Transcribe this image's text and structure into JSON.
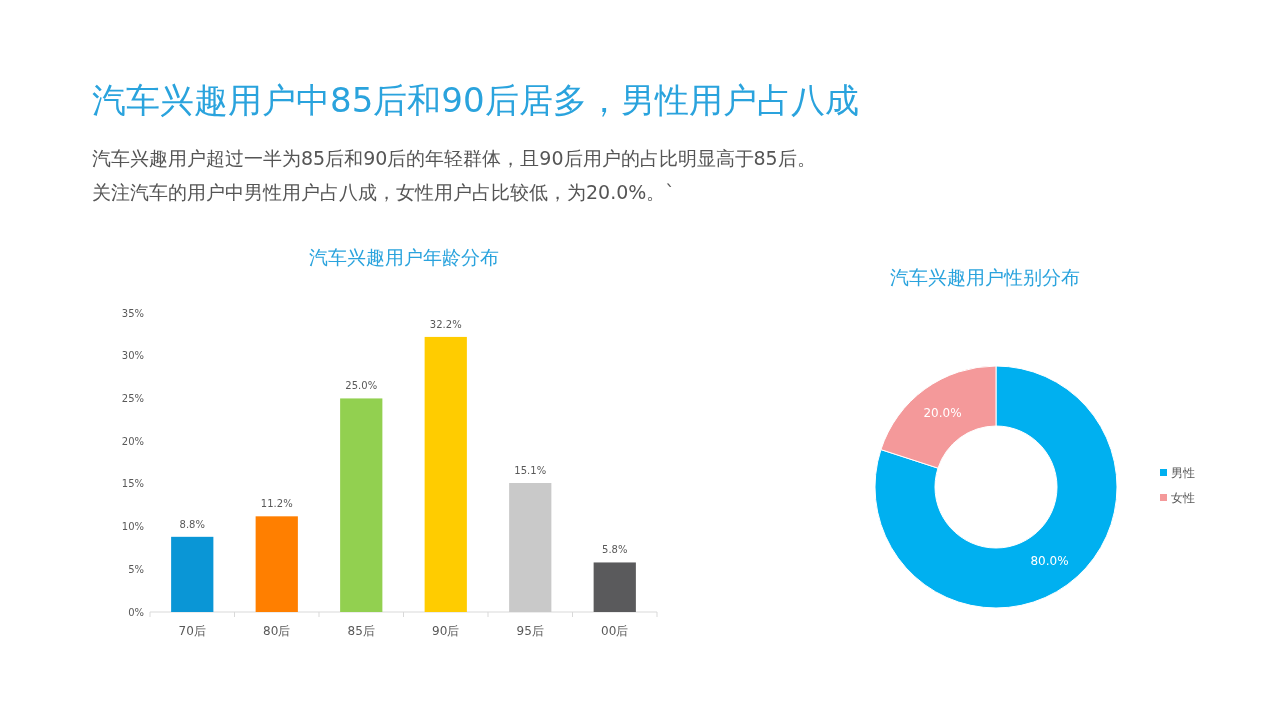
{
  "chart_data": [
    {
      "type": "other",
      "title": "汽车兴趣用户中85后和90后居多，男性用户占八成",
      "annotations": [
        "汽车兴趣用户超过一半为85后和90后的年轻群体，且90后用户的占比明显高于85后。",
        "关注汽车的用户中男性用户占八成，女性用户占比较低，为20.0%。`"
      ]
    },
    {
      "type": "bar",
      "title": "汽车兴趣用户年龄分布",
      "categories": [
        "70后",
        "80后",
        "85后",
        "90后",
        "95后",
        "00后"
      ],
      "values": [
        8.8,
        11.2,
        25.0,
        32.2,
        15.1,
        5.8
      ],
      "colors": [
        "#0a96d6",
        "#ff7f00",
        "#92d050",
        "#ffcc00",
        "#c9c9c9",
        "#5a5a5c"
      ],
      "value_labels": [
        "8.8%",
        "11.2%",
        "25.0%",
        "32.2%",
        "15.1%",
        "5.8%"
      ],
      "ylim": [
        0,
        35
      ],
      "yticks": [
        {
          "value": 0,
          "label": "0%"
        },
        {
          "value": 5,
          "label": "5%"
        },
        {
          "value": 10,
          "label": "10%"
        },
        {
          "value": 15,
          "label": "15%"
        },
        {
          "value": 20,
          "label": "20%"
        },
        {
          "value": 25,
          "label": "25%"
        },
        {
          "value": 30,
          "label": "30%"
        },
        {
          "value": 35,
          "label": "35%"
        }
      ],
      "grid": false
    },
    {
      "type": "donut",
      "title": "汽车兴趣用户性别分布",
      "categories": [
        "男性",
        "女性"
      ],
      "values": [
        80.0,
        20.0
      ],
      "colors": [
        "#00b0f0",
        "#f4999a"
      ],
      "value_labels": [
        "80.0%",
        "20.0%"
      ],
      "legend": "right"
    }
  ]
}
